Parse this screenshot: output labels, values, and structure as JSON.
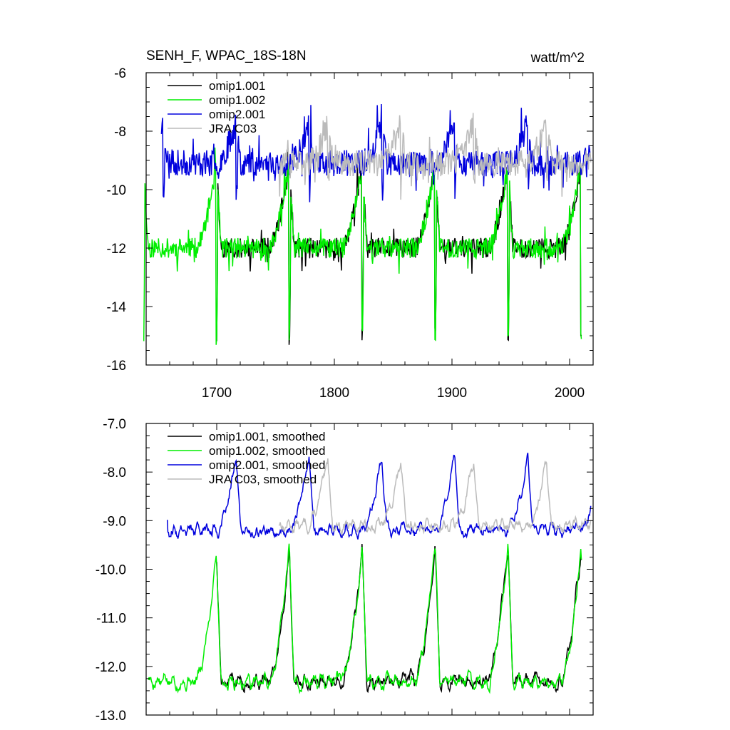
{
  "chart_data": [
    {
      "type": "line",
      "title": "SENH_F, WPAC_18S-18N",
      "units": "watt/m^2",
      "xlim": [
        1640,
        2020
      ],
      "ylim": [
        -16,
        -6
      ],
      "x_ticks": [
        1700,
        1800,
        1900,
        2000
      ],
      "y_ticks": [
        -16,
        -14,
        -12,
        -10,
        -8,
        -6
      ],
      "y_tick_labels": [
        "-16",
        "-14",
        "-12",
        "-10",
        "-8",
        "-6"
      ],
      "legend_location": "top-left inside",
      "series": [
        {
          "name": "omip1.001",
          "color": "#000000",
          "x_start": 1700,
          "x_end": 2010,
          "cycle_start": 1700,
          "base": -12.0,
          "peak": -9.0,
          "drop": -15.0,
          "seed": 11,
          "noise": 0.35
        },
        {
          "name": "omip1.002",
          "color": "#00ee00",
          "x_start": 1638,
          "x_end": 2010,
          "cycle_start": 1700,
          "base": -12.0,
          "peak": -9.0,
          "drop": -15.0,
          "seed": 11,
          "noise": 0.35
        },
        {
          "name": "omip2.001",
          "color": "#0000dd",
          "x_start": 1653,
          "x_end": 2018,
          "cycle_start": 1717,
          "base": -9.1,
          "peak": -7.6,
          "drop": -10.0,
          "seed": 23,
          "noise": 0.45
        },
        {
          "name": "JRA C03",
          "color": "#bbbbbb",
          "x_start": 1753,
          "x_end": 2018,
          "cycle_start": 1733,
          "base": -9.1,
          "peak": -7.6,
          "drop": -9.9,
          "seed": 37,
          "noise": 0.45
        }
      ]
    },
    {
      "type": "line",
      "xlim": [
        1640,
        2020
      ],
      "ylim": [
        -13,
        -7
      ],
      "x_ticks": [
        1700,
        1800,
        1900,
        2000
      ],
      "y_ticks": [
        -13,
        -12,
        -11,
        -10,
        -9,
        -8,
        -7
      ],
      "y_tick_labels": [
        "-13.0",
        "-12.0",
        "-11.0",
        "-10.0",
        "-9.0",
        "-8.0",
        "-7.0"
      ],
      "legend_location": "top-left inside",
      "series": [
        {
          "name": "omip1.001, smoothed",
          "color": "#000000",
          "x_start": 1700,
          "x_end": 2010,
          "cycle_start": 1700,
          "base": -12.3,
          "peak": -9.5,
          "seed": 5,
          "noise": 0.12
        },
        {
          "name": "omip1.002, smoothed",
          "color": "#00ee00",
          "x_start": 1642,
          "x_end": 2010,
          "cycle_start": 1700,
          "base": -12.3,
          "peak": -9.5,
          "seed": 5,
          "noise": 0.12
        },
        {
          "name": "omip2.001, smoothed",
          "color": "#0000dd",
          "x_start": 1658,
          "x_end": 2018,
          "cycle_start": 1717,
          "base": -9.2,
          "peak": -7.6,
          "seed": 9,
          "noise": 0.1
        },
        {
          "name": "JRA C03, smoothed",
          "color": "#bbbbbb",
          "x_start": 1753,
          "x_end": 2018,
          "cycle_start": 1733,
          "base": -9.1,
          "peak": -7.7,
          "seed": 13,
          "noise": 0.1
        }
      ]
    }
  ]
}
